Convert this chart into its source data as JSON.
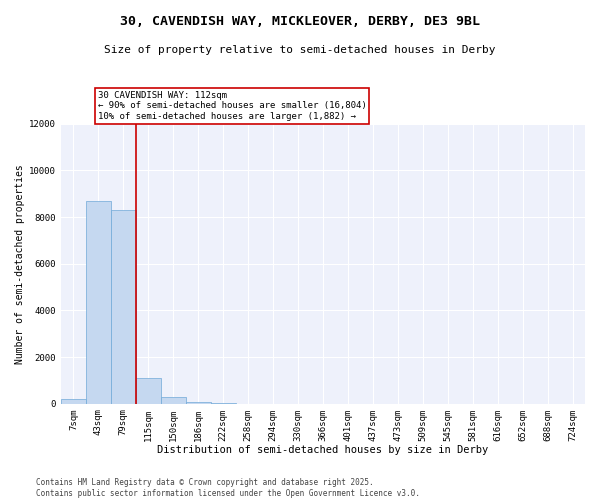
{
  "title_line1": "30, CAVENDISH WAY, MICKLEOVER, DERBY, DE3 9BL",
  "title_line2": "Size of property relative to semi-detached houses in Derby",
  "xlabel": "Distribution of semi-detached houses by size in Derby",
  "ylabel": "Number of semi-detached properties",
  "categories": [
    "7sqm",
    "43sqm",
    "79sqm",
    "115sqm",
    "150sqm",
    "186sqm",
    "222sqm",
    "258sqm",
    "294sqm",
    "330sqm",
    "366sqm",
    "401sqm",
    "437sqm",
    "473sqm",
    "509sqm",
    "545sqm",
    "581sqm",
    "616sqm",
    "652sqm",
    "688sqm",
    "724sqm"
  ],
  "values": [
    200,
    8700,
    8300,
    1100,
    300,
    80,
    10,
    0,
    0,
    0,
    0,
    0,
    0,
    0,
    0,
    0,
    0,
    0,
    0,
    0,
    0
  ],
  "bar_color": "#c5d8f0",
  "bar_edge_color": "#6fa8d8",
  "vline_color": "#cc0000",
  "annotation_text": "30 CAVENDISH WAY: 112sqm\n← 90% of semi-detached houses are smaller (16,804)\n10% of semi-detached houses are larger (1,882) →",
  "annotation_box_facecolor": "white",
  "annotation_box_edgecolor": "#cc0000",
  "ylim": [
    0,
    12000
  ],
  "yticks": [
    0,
    2000,
    4000,
    6000,
    8000,
    10000,
    12000
  ],
  "background_color": "#eef1fb",
  "grid_color": "white",
  "footer_line1": "Contains HM Land Registry data © Crown copyright and database right 2025.",
  "footer_line2": "Contains public sector information licensed under the Open Government Licence v3.0.",
  "title1_fontsize": 9.5,
  "title2_fontsize": 8,
  "xlabel_fontsize": 7.5,
  "ylabel_fontsize": 7,
  "tick_fontsize": 6.5,
  "annotation_fontsize": 6.5,
  "footer_fontsize": 5.5,
  "vline_index": 2.5
}
